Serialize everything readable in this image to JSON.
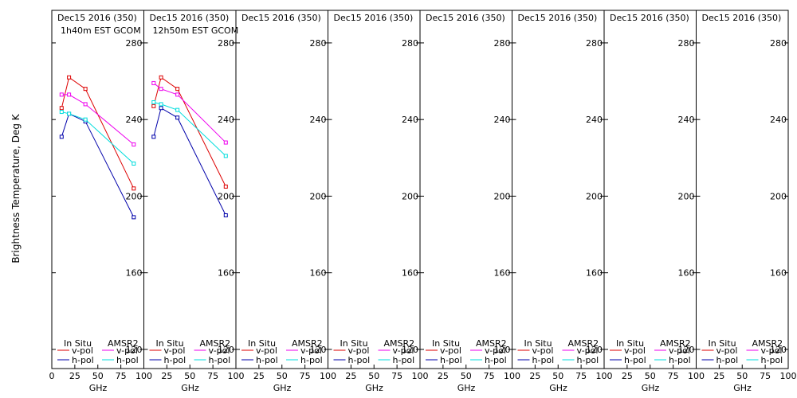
{
  "ylabel": "Brightness Temperature, Deg K",
  "xlabel": "GHz",
  "xticks": [
    0,
    25,
    50,
    75,
    100
  ],
  "yticks": [
    120,
    160,
    200,
    240,
    280
  ],
  "xlim": [
    0,
    100
  ],
  "ylim": [
    110,
    297
  ],
  "legend": {
    "col1_header": "In Situ",
    "col2_header": "AMSR2",
    "v_label": "v-pol",
    "h_label": "h-pol"
  },
  "colors": {
    "insitu_v": "#dd0000",
    "insitu_h": "#0000aa",
    "amsr2_v": "#ee00ee",
    "amsr2_h": "#00dddd"
  },
  "chart_data": [
    {
      "type": "line",
      "title": "Dec15 2016 (350)",
      "subtitle": "1h40m EST GCOM",
      "series": [
        {
          "name": "In Situ v-pol",
          "color": "#dd0000",
          "x": [
            10.65,
            18.7,
            36.5,
            89
          ],
          "y": [
            246,
            262,
            256,
            204
          ]
        },
        {
          "name": "In Situ h-pol",
          "color": "#0000aa",
          "x": [
            10.65,
            18.7,
            36.5,
            89
          ],
          "y": [
            231,
            243,
            239,
            189
          ]
        },
        {
          "name": "AMSR2 v-pol",
          "color": "#ee00ee",
          "x": [
            10.65,
            18.7,
            36.5,
            89
          ],
          "y": [
            253,
            253,
            248,
            227
          ]
        },
        {
          "name": "AMSR2 h-pol",
          "color": "#00dddd",
          "x": [
            10.65,
            18.7,
            36.5,
            89
          ],
          "y": [
            244,
            243,
            240,
            217
          ]
        }
      ]
    },
    {
      "type": "line",
      "title": "Dec15 2016 (350)",
      "subtitle": "12h50m EST GCOM",
      "series": [
        {
          "name": "In Situ v-pol",
          "color": "#dd0000",
          "x": [
            10.65,
            18.7,
            36.5,
            89
          ],
          "y": [
            247,
            262,
            256,
            205
          ]
        },
        {
          "name": "In Situ h-pol",
          "color": "#0000aa",
          "x": [
            10.65,
            18.7,
            36.5,
            89
          ],
          "y": [
            231,
            246,
            241,
            190
          ]
        },
        {
          "name": "AMSR2 v-pol",
          "color": "#ee00ee",
          "x": [
            10.65,
            18.7,
            36.5,
            89
          ],
          "y": [
            259,
            256,
            253,
            228
          ]
        },
        {
          "name": "AMSR2 h-pol",
          "color": "#00dddd",
          "x": [
            10.65,
            18.7,
            36.5,
            89
          ],
          "y": [
            249,
            248,
            245,
            221
          ]
        }
      ]
    },
    {
      "type": "line",
      "title": "Dec15 2016 (350)",
      "subtitle": "",
      "series": []
    },
    {
      "type": "line",
      "title": "Dec15 2016 (350)",
      "subtitle": "",
      "series": []
    },
    {
      "type": "line",
      "title": "Dec15 2016 (350)",
      "subtitle": "",
      "series": []
    },
    {
      "type": "line",
      "title": "Dec15 2016 (350)",
      "subtitle": "",
      "series": []
    },
    {
      "type": "line",
      "title": "Dec15 2016 (350)",
      "subtitle": "",
      "series": []
    },
    {
      "type": "line",
      "title": "Dec15 2016 (350)",
      "subtitle": "",
      "series": []
    }
  ]
}
